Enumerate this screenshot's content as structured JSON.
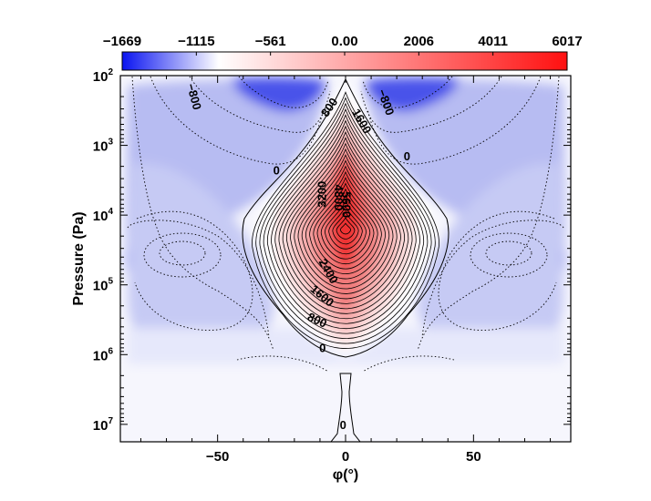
{
  "chart_data": {
    "type": "heatmap",
    "title": "",
    "xlabel": "φ(°)",
    "ylabel": "Pressure (Pa)",
    "xlim": [
      -88,
      88
    ],
    "ylim_log10": [
      2,
      7.25
    ],
    "x_ticks": [
      {
        "value": -50,
        "label": "−50"
      },
      {
        "value": 0,
        "label": "0"
      },
      {
        "value": 50,
        "label": "50"
      }
    ],
    "y_ticks": [
      {
        "exp": 2,
        "base": "10",
        "sup": "2"
      },
      {
        "exp": 3,
        "base": "10",
        "sup": "3"
      },
      {
        "exp": 4,
        "base": "10",
        "sup": "4"
      },
      {
        "exp": 5,
        "base": "10",
        "sup": "5"
      },
      {
        "exp": 6,
        "base": "10",
        "sup": "6"
      },
      {
        "exp": 7,
        "base": "10",
        "sup": "7"
      }
    ],
    "colorbar": {
      "min": -1669,
      "max": 6017,
      "tick_values": [
        -1669,
        -1115,
        -561,
        0,
        2006,
        4011,
        6017
      ],
      "tick_labels": [
        "−1669",
        "−1115",
        "−561",
        "0.00",
        "2006",
        "4011",
        "6017"
      ],
      "colors": {
        "negative": "#0a14f0",
        "zero": "#ffffff",
        "positive": "#ff1010"
      }
    },
    "jet": {
      "peak": 6017,
      "core_lat": 0,
      "core_log10p": 4.2
    },
    "contour_labels": [
      {
        "text": "−800",
        "lat": -59,
        "log10p": 2.3,
        "rotate": 75
      },
      {
        "text": "−800",
        "lat": 16,
        "log10p": 2.38,
        "rotate": 70
      },
      {
        "text": "800",
        "lat": -6.5,
        "log10p": 2.45,
        "rotate": -55
      },
      {
        "text": "1600",
        "lat": 6.5,
        "log10p": 2.65,
        "rotate": 60
      },
      {
        "text": "0",
        "lat": -27,
        "log10p": 3.35,
        "rotate": 0
      },
      {
        "text": "0",
        "lat": 24,
        "log10p": 3.15,
        "rotate": 0
      },
      {
        "text": "3200",
        "lat": -9.5,
        "log10p": 3.7,
        "rotate": -90
      },
      {
        "text": "4800",
        "lat": -2.5,
        "log10p": 3.75,
        "rotate": 90
      },
      {
        "text": "5600",
        "lat": 0.5,
        "log10p": 3.85,
        "rotate": 90
      },
      {
        "text": "2400",
        "lat": -6.5,
        "log10p": 4.8,
        "rotate": 60
      },
      {
        "text": "1600",
        "lat": -9,
        "log10p": 5.15,
        "rotate": 40
      },
      {
        "text": "800",
        "lat": -11,
        "log10p": 5.5,
        "rotate": 25
      },
      {
        "text": "0",
        "lat": -9,
        "log10p": 5.9,
        "rotate": 0
      },
      {
        "text": "0",
        "lat": -1,
        "log10p": 7.0,
        "rotate": 0
      }
    ]
  }
}
